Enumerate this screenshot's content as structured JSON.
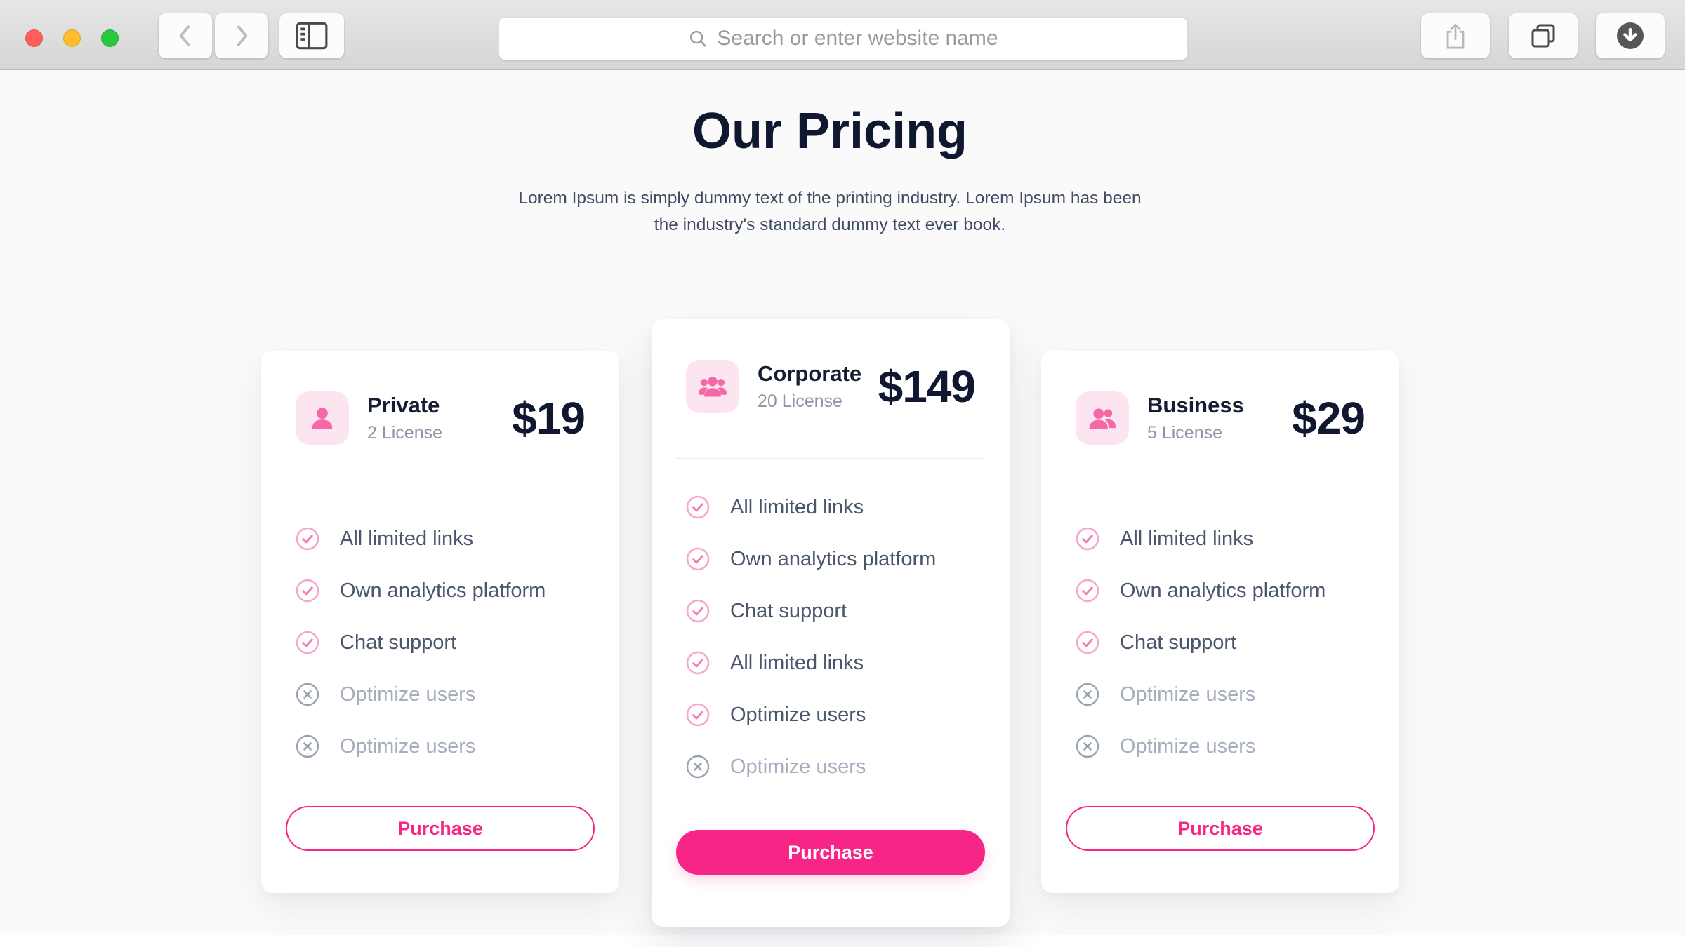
{
  "browser": {
    "window_controls": [
      "close",
      "minimize",
      "zoom"
    ],
    "toolbar": {
      "search_placeholder": "Search or enter website name",
      "buttons": [
        "back",
        "forward",
        "sidebar",
        "share",
        "tab-overview",
        "downloads"
      ]
    }
  },
  "page": {
    "title": "Our Pricing",
    "subtitle_lines": [
      "Lorem Ipsum is simply dummy text of the printing industry. Lorem Ipsum has been",
      "the industry's standard dummy text ever book."
    ],
    "plans": [
      {
        "name": "Private",
        "license": "2 License",
        "price": "$19",
        "icon": "person-single",
        "featured": false,
        "button_label": "Purchase",
        "features": [
          {
            "label": "All limited links",
            "included": true
          },
          {
            "label": "Own analytics platform",
            "included": true
          },
          {
            "label": "Chat support",
            "included": true
          },
          {
            "label": "Optimize users",
            "included": false
          },
          {
            "label": "Optimize users",
            "included": false
          }
        ]
      },
      {
        "name": "Corporate",
        "license": "20 License",
        "price": "$149",
        "icon": "person-group",
        "featured": true,
        "button_label": "Purchase",
        "features": [
          {
            "label": "All limited links",
            "included": true
          },
          {
            "label": "Own analytics platform",
            "included": true
          },
          {
            "label": "Chat support",
            "included": true
          },
          {
            "label": "All limited links",
            "included": true
          },
          {
            "label": "Optimize users",
            "included": true
          },
          {
            "label": "Optimize users",
            "included": false
          }
        ]
      },
      {
        "name": "Business",
        "license": "5 License",
        "price": "$29",
        "icon": "person-duo",
        "featured": false,
        "button_label": "Purchase",
        "features": [
          {
            "label": "All limited links",
            "included": true
          },
          {
            "label": "Own analytics platform",
            "included": true
          },
          {
            "label": "Chat support",
            "included": true
          },
          {
            "label": "Optimize users",
            "included": false
          },
          {
            "label": "Optimize users",
            "included": false
          }
        ]
      }
    ]
  },
  "colors": {
    "accent_pink": "#f72585",
    "icon_pink": "#f568a7",
    "tile_pink": "#fce4f0",
    "check_ring": "#f8a6cb",
    "check_mark": "#f47fb4",
    "disabled_gray": "#98a2b3",
    "heading_navy": "#101830",
    "body_gray": "#49566c",
    "page_bg": "#fafafa"
  }
}
